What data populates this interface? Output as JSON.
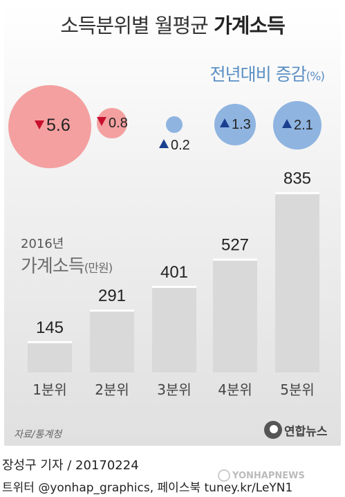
{
  "title_plain": "소득분위별 월평균 ",
  "title_bold": "가계소득",
  "change_title": "전년대비 증감",
  "change_unit": "(%)",
  "income_year": "2016년",
  "income_name": "가계소득",
  "income_unit": "(만원)",
  "source": "자료/통계청",
  "logo_text": "연합뉴스",
  "credit": "장성구 기자 / 20170224",
  "social": "트위터 @yonhap_graphics, 페이스북 tuney.kr/LeYN1",
  "watermark": "YONHAPNEWS",
  "colors": {
    "decrease": "#f4a0a0",
    "increase": "#8fb4e0",
    "down_marker": "#c8102e",
    "up_marker": "#1a3f8f",
    "bar": "#d9d9d9"
  },
  "chart_data": {
    "type": "bar",
    "categories": [
      "1분위",
      "2분위",
      "3분위",
      "4분위",
      "5분위"
    ],
    "values": [
      145,
      291,
      401,
      527,
      835
    ],
    "value_labels": [
      "145",
      "291",
      "401",
      "527",
      "835"
    ],
    "change_pct": [
      -5.6,
      -0.8,
      0.2,
      1.3,
      2.1
    ],
    "change_labels": [
      "5.6",
      "0.8",
      "0.2",
      "1.3",
      "2.1"
    ],
    "change_direction": [
      "down",
      "down",
      "up",
      "up",
      "up"
    ]
  }
}
